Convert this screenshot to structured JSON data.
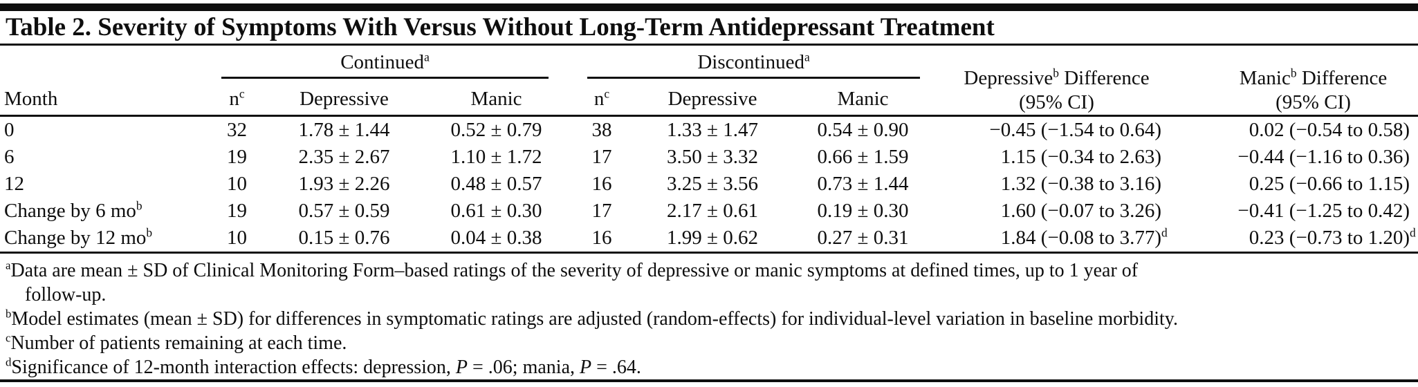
{
  "title": "Table 2. Severity of Symptoms With Versus Without Long-Term Antidepressant Treatment",
  "colors": {
    "text": "#0e0e0e",
    "rule": "#0e0e0e",
    "background": "#ffffff"
  },
  "table": {
    "group_headers": {
      "continued": {
        "label": "Continued",
        "sup": "a"
      },
      "discontinued": {
        "label": "Discontinued",
        "sup": "a"
      }
    },
    "column_headers": {
      "month": "Month",
      "n": {
        "label": "n",
        "sup": "c"
      },
      "depressive": "Depressive",
      "manic": "Manic",
      "dep_diff": {
        "word": "Depressive",
        "sup": "b",
        "rest": " Difference",
        "line2": "(95% CI)"
      },
      "manic_diff": {
        "word": "Manic",
        "sup": "b",
        "rest": " Difference",
        "line2": "(95% CI)"
      }
    },
    "rows": [
      {
        "month": "0",
        "month_sup": "",
        "cont_n": "32",
        "cont_dep": "1.78 ± 1.44",
        "cont_manic": "0.52 ± 0.79",
        "disc_n": "38",
        "disc_dep": "1.33 ± 1.47",
        "disc_manic": "0.54 ± 0.90",
        "dep_diff": "−0.45 (−1.54 to 0.64)",
        "dep_diff_sup": "",
        "manic_diff": "0.02 (−0.54 to 0.58)",
        "manic_diff_sup": ""
      },
      {
        "month": "6",
        "month_sup": "",
        "cont_n": "19",
        "cont_dep": "2.35 ± 2.67",
        "cont_manic": "1.10 ± 1.72",
        "disc_n": "17",
        "disc_dep": "3.50 ± 3.32",
        "disc_manic": "0.66 ± 1.59",
        "dep_diff": "1.15 (−0.34 to 2.63)",
        "dep_diff_sup": "",
        "manic_diff": "−0.44 (−1.16 to 0.36)",
        "manic_diff_sup": ""
      },
      {
        "month": "12",
        "month_sup": "",
        "cont_n": "10",
        "cont_dep": "1.93 ± 2.26",
        "cont_manic": "0.48 ± 0.57",
        "disc_n": "16",
        "disc_dep": "3.25 ± 3.56",
        "disc_manic": "0.73 ± 1.44",
        "dep_diff": "1.32 (−0.38 to 3.16)",
        "dep_diff_sup": "",
        "manic_diff": "0.25 (−0.66 to 1.15)",
        "manic_diff_sup": ""
      },
      {
        "month": "Change by 6 mo",
        "month_sup": "b",
        "cont_n": "19",
        "cont_dep": "0.57 ± 0.59",
        "cont_manic": "0.61 ± 0.30",
        "disc_n": "17",
        "disc_dep": "2.17 ± 0.61",
        "disc_manic": "0.19 ± 0.30",
        "dep_diff": "1.60 (−0.07 to 3.26)",
        "dep_diff_sup": "",
        "manic_diff": "−0.41 (−1.25 to 0.42)",
        "manic_diff_sup": ""
      },
      {
        "month": "Change by 12 mo",
        "month_sup": "b",
        "cont_n": "10",
        "cont_dep": "0.15 ± 0.76",
        "cont_manic": "0.04 ± 0.38",
        "disc_n": "16",
        "disc_dep": "1.99 ± 0.62",
        "disc_manic": "0.27 ± 0.31",
        "dep_diff": "1.84 (−0.08 to 3.77)",
        "dep_diff_sup": "d",
        "manic_diff": "0.23 (−0.73 to 1.20)",
        "manic_diff_sup": "d"
      }
    ]
  },
  "footnotes": [
    {
      "sup": "a",
      "parts": [
        {
          "t": "Data are mean ± SD of Clinical Monitoring Form–based ratings of the severity of depressive or manic symptoms at defined times, up to 1 year of\n    follow-up."
        }
      ]
    },
    {
      "sup": "b",
      "parts": [
        {
          "t": "Model estimates (mean ± SD) for differences in symptomatic ratings are adjusted (random-effects) for individual-level variation in baseline morbidity."
        }
      ]
    },
    {
      "sup": "c",
      "parts": [
        {
          "t": "Number of patients remaining at each time."
        }
      ]
    },
    {
      "sup": "d",
      "parts": [
        {
          "t": "Significance of 12-month interaction effects: depression, "
        },
        {
          "t": "P",
          "italic": true
        },
        {
          "t": " = .06; mania, "
        },
        {
          "t": "P",
          "italic": true
        },
        {
          "t": " = .64."
        }
      ]
    }
  ],
  "chart_data": {
    "type": "table",
    "title": "Table 2. Severity of Symptoms With Versus Without Long-Term Antidepressant Treatment",
    "columns": [
      "Month",
      "Continued n",
      "Continued Depressive",
      "Continued Manic",
      "Discontinued n",
      "Discontinued Depressive",
      "Discontinued Manic",
      "Depressive Difference (95% CI)",
      "Manic Difference (95% CI)"
    ],
    "rows": [
      [
        "0",
        "32",
        "1.78 ± 1.44",
        "0.52 ± 0.79",
        "38",
        "1.33 ± 1.47",
        "0.54 ± 0.90",
        "−0.45 (−1.54 to 0.64)",
        "0.02 (−0.54 to 0.58)"
      ],
      [
        "6",
        "19",
        "2.35 ± 2.67",
        "1.10 ± 1.72",
        "17",
        "3.50 ± 3.32",
        "0.66 ± 1.59",
        "1.15 (−0.34 to 2.63)",
        "−0.44 (−1.16 to 0.36)"
      ],
      [
        "12",
        "10",
        "1.93 ± 2.26",
        "0.48 ± 0.57",
        "16",
        "3.25 ± 3.56",
        "0.73 ± 1.44",
        "1.32 (−0.38 to 3.16)",
        "0.25 (−0.66 to 1.15)"
      ],
      [
        "Change by 6 mo",
        "19",
        "0.57 ± 0.59",
        "0.61 ± 0.30",
        "17",
        "2.17 ± 0.61",
        "0.19 ± 0.30",
        "1.60 (−0.07 to 3.26)",
        "−0.41 (−1.25 to 0.42)"
      ],
      [
        "Change by 12 mo",
        "10",
        "0.15 ± 0.76",
        "0.04 ± 0.38",
        "16",
        "1.99 ± 0.62",
        "0.27 ± 0.31",
        "1.84 (−0.08 to 3.77) d",
        "0.23 (−0.73 to 1.20) d"
      ]
    ]
  }
}
